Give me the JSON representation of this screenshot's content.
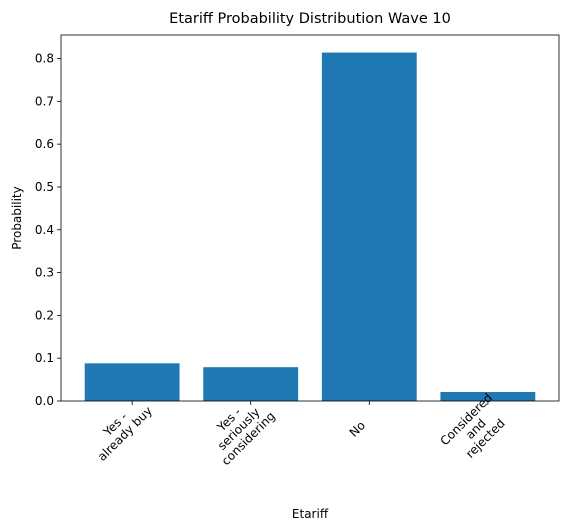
{
  "chart_data": {
    "type": "bar",
    "title": "Etariff Probability Distribution Wave 10",
    "xlabel": "Etariff",
    "ylabel": "Probability",
    "categories": [
      [
        "Yes -",
        "already buy"
      ],
      [
        "Yes -",
        "seriously",
        "considering"
      ],
      [
        "No"
      ],
      [
        "Considered",
        "and",
        "rejected"
      ]
    ],
    "values": [
      0.088,
      0.079,
      0.814,
      0.021
    ],
    "ylim": [
      0,
      0.855
    ],
    "yticks": [
      0.0,
      0.1,
      0.2,
      0.3,
      0.4,
      0.5,
      0.6,
      0.7,
      0.8
    ],
    "ytick_labels": [
      "0.0",
      "0.1",
      "0.2",
      "0.3",
      "0.4",
      "0.5",
      "0.6",
      "0.7",
      "0.8"
    ],
    "bar_color": "#1f77b4",
    "grid": false,
    "xtick_rotation": 45
  }
}
